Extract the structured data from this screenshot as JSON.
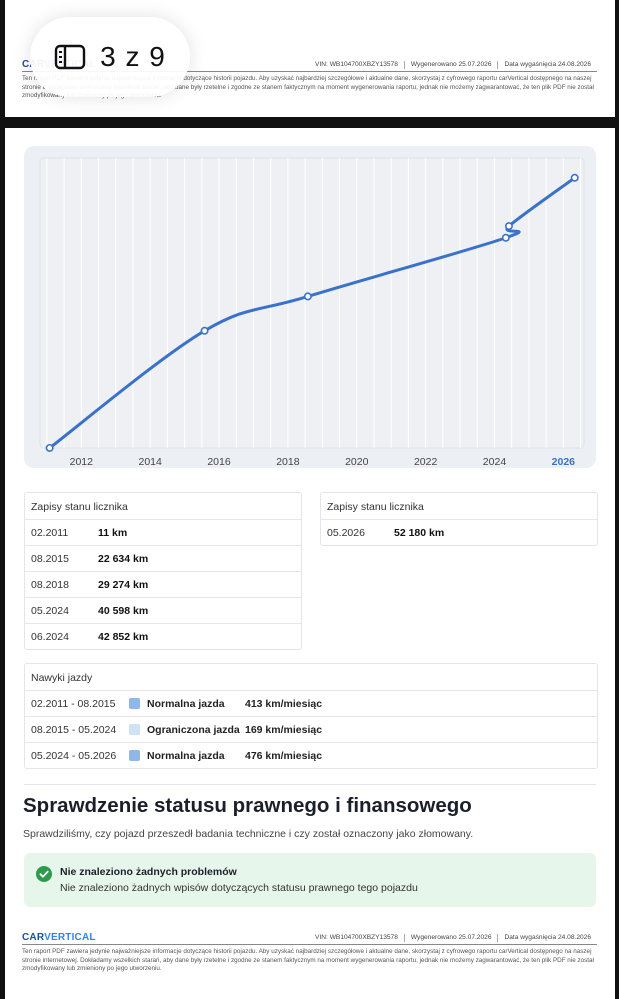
{
  "viewer": {
    "page_counter": "3 z 9"
  },
  "footer": {
    "logo_a": "CAR",
    "logo_b": "VERTICAL",
    "vin": "VIN:  WB104700XBZY13578",
    "generated": "Wygenerowano  25.07.2026",
    "expiry": "Data wygaśnięcia  24.08.2026",
    "text": "Ten raport PDF zawiera jedynie najważniejsze informacje dotyczące historii pojazdu. Aby uzyskać najbardziej szczegółowe i aktualne dane, skorzystaj z cyfrowego raportu carVertical dostępnego na naszej stronie internetowej. Dokładamy wszelkich starań, aby dane były rzetelne i zgodne ze stanem faktycznym na moment wygenerowania raportu, jednak nie możemy zagwarantować, że ten plik PDF nie został zmodyfikowany lub zmieniony po jego utworzeniu."
  },
  "chart_data": {
    "type": "line",
    "x_tick_labels": [
      "2012",
      "2014",
      "2016",
      "2018",
      "2020",
      "2022",
      "2024",
      "2026"
    ],
    "highlighted_tick": "2026",
    "xlim": [
      2010.8,
      2026.6
    ],
    "ylim": [
      0,
      56000
    ],
    "grid": true,
    "series": [
      {
        "points": [
          {
            "x": 2011.08,
            "y": 11
          },
          {
            "x": 2015.58,
            "y": 22634
          },
          {
            "x": 2018.58,
            "y": 29274
          },
          {
            "x": 2024.33,
            "y": 40598
          },
          {
            "x": 2024.42,
            "y": 42852
          },
          {
            "x": 2026.33,
            "y": 52180
          }
        ]
      }
    ],
    "colors": {
      "line": "#3a72c9",
      "background": "#eceff3",
      "grid": "#ffffff",
      "highlight_tick": "#3a72c9"
    }
  },
  "odometer_table_1": {
    "header": "Zapisy stanu licznika",
    "rows": [
      {
        "date": "02.2011",
        "value": "11 km"
      },
      {
        "date": "08.2015",
        "value": "22 634 km"
      },
      {
        "date": "08.2018",
        "value": "29 274 km"
      },
      {
        "date": "05.2024",
        "value": "40 598 km"
      },
      {
        "date": "06.2024",
        "value": "42 852 km"
      }
    ]
  },
  "odometer_table_2": {
    "header": "Zapisy stanu licznika",
    "rows": [
      {
        "date": "05.2026",
        "value": "52 180 km"
      }
    ]
  },
  "driving_habits": {
    "header": "Nawyki jazdy",
    "rows": [
      {
        "period": "02.2011  -  08.2015",
        "type": "Normalna jazda",
        "rate": "413 km/miesiąc",
        "color": "#8db8e8"
      },
      {
        "period": "08.2015  -  05.2024",
        "type": "Ograniczona jazda",
        "rate": "169 km/miesiąc",
        "color": "#cfe3f6"
      },
      {
        "period": "05.2024  -  05.2026",
        "type": "Normalna jazda",
        "rate": "476 km/miesiąc",
        "color": "#8db8e8"
      }
    ]
  },
  "legal": {
    "title": "Sprawdzenie statusu prawnego i finansowego",
    "subtitle": "Sprawdziliśmy, czy pojazd przeszedł badania techniczne i czy został oznaczony jako złomowany.",
    "status_title": "Nie znaleziono żadnych problemów",
    "status_text": "Nie znaleziono żadnych wpisów dotyczących statusu prawnego tego pojazdu",
    "status_color": "#2e9a4e"
  }
}
